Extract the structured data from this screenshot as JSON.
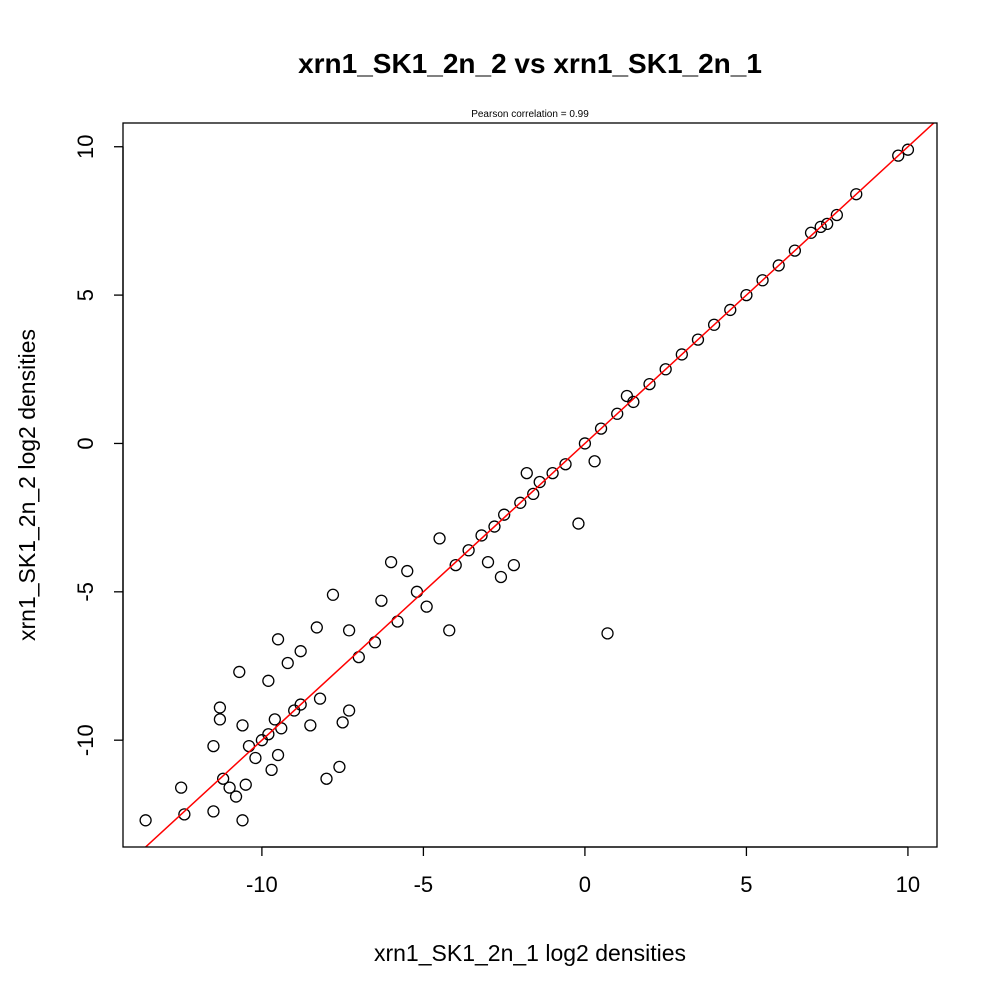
{
  "chart_data": {
    "type": "scatter",
    "title": "xrn1_SK1_2n_2 vs xrn1_SK1_2n_1",
    "subtitle": "Pearson correlation =  0.99",
    "xlabel": "xrn1_SK1_2n_1 log2 densities",
    "ylabel": "xrn1_SK1_2n_2 log2 densities",
    "xlim": [
      -14.3,
      10.9
    ],
    "ylim": [
      -13.6,
      10.8
    ],
    "xticks": [
      -10,
      -5,
      0,
      5,
      10
    ],
    "yticks": [
      -10,
      -5,
      0,
      5,
      10
    ],
    "x_tick_labels": [
      "-10",
      "-5",
      "0",
      "5",
      "10"
    ],
    "y_tick_labels": [
      "-10",
      "-5",
      "0",
      "5",
      "10"
    ],
    "point_style": "open-circle",
    "point_color": "#000000",
    "fit_line": {
      "slope": 1,
      "intercept": 0,
      "color": "#ff0000"
    },
    "points": [
      [
        -13.6,
        -12.7
      ],
      [
        -12.5,
        -11.6
      ],
      [
        -12.4,
        -12.5
      ],
      [
        -11.5,
        -12.4
      ],
      [
        -10.6,
        -12.7
      ],
      [
        -10.8,
        -11.9
      ],
      [
        -11.2,
        -11.3
      ],
      [
        -11.0,
        -11.6
      ],
      [
        -10.5,
        -11.5
      ],
      [
        -11.3,
        -9.3
      ],
      [
        -11.3,
        -8.9
      ],
      [
        -11.5,
        -10.2
      ],
      [
        -10.6,
        -9.5
      ],
      [
        -10.4,
        -10.2
      ],
      [
        -10.2,
        -10.6
      ],
      [
        -10.0,
        -10.0
      ],
      [
        -9.8,
        -9.8
      ],
      [
        -9.7,
        -11.0
      ],
      [
        -9.5,
        -10.5
      ],
      [
        -9.6,
        -9.3
      ],
      [
        -9.4,
        -9.6
      ],
      [
        -10.7,
        -7.7
      ],
      [
        -9.8,
        -8.0
      ],
      [
        -9.5,
        -6.6
      ],
      [
        -9.2,
        -7.4
      ],
      [
        -9.0,
        -9.0
      ],
      [
        -8.8,
        -8.8
      ],
      [
        -8.8,
        -7.0
      ],
      [
        -8.5,
        -9.5
      ],
      [
        -8.3,
        -6.2
      ],
      [
        -8.2,
        -8.6
      ],
      [
        -7.8,
        -5.1
      ],
      [
        -7.5,
        -9.4
      ],
      [
        -8.0,
        -11.3
      ],
      [
        -7.6,
        -10.9
      ],
      [
        -7.3,
        -9.0
      ],
      [
        -7.0,
        -7.2
      ],
      [
        -7.3,
        -6.3
      ],
      [
        -6.5,
        -6.7
      ],
      [
        -6.3,
        -5.3
      ],
      [
        -6.0,
        -4.0
      ],
      [
        -5.8,
        -6.0
      ],
      [
        -5.5,
        -4.3
      ],
      [
        -5.2,
        -5.0
      ],
      [
        -4.9,
        -5.5
      ],
      [
        -4.5,
        -3.2
      ],
      [
        -4.2,
        -6.3
      ],
      [
        -4.0,
        -4.1
      ],
      [
        -3.6,
        -3.6
      ],
      [
        -3.2,
        -3.1
      ],
      [
        -3.0,
        -4.0
      ],
      [
        -2.8,
        -2.8
      ],
      [
        -2.5,
        -2.4
      ],
      [
        -2.6,
        -4.5
      ],
      [
        -2.2,
        -4.1
      ],
      [
        -2.0,
        -2.0
      ],
      [
        -1.6,
        -1.7
      ],
      [
        -1.8,
        -1.0
      ],
      [
        -1.4,
        -1.3
      ],
      [
        -1.0,
        -1.0
      ],
      [
        -0.6,
        -0.7
      ],
      [
        -0.2,
        -2.7
      ],
      [
        0.3,
        -0.6
      ],
      [
        0.0,
        0.0
      ],
      [
        0.5,
        0.5
      ],
      [
        0.7,
        -6.4
      ],
      [
        1.0,
        1.0
      ],
      [
        1.3,
        1.6
      ],
      [
        1.5,
        1.4
      ],
      [
        2.0,
        2.0
      ],
      [
        2.5,
        2.5
      ],
      [
        3.0,
        3.0
      ],
      [
        3.5,
        3.5
      ],
      [
        4.0,
        4.0
      ],
      [
        4.5,
        4.5
      ],
      [
        5.0,
        5.0
      ],
      [
        5.5,
        5.5
      ],
      [
        6.0,
        6.0
      ],
      [
        6.5,
        6.5
      ],
      [
        7.0,
        7.1
      ],
      [
        7.3,
        7.3
      ],
      [
        7.5,
        7.4
      ],
      [
        7.8,
        7.7
      ],
      [
        8.4,
        8.4
      ],
      [
        9.7,
        9.7
      ],
      [
        10.0,
        9.9
      ]
    ]
  }
}
